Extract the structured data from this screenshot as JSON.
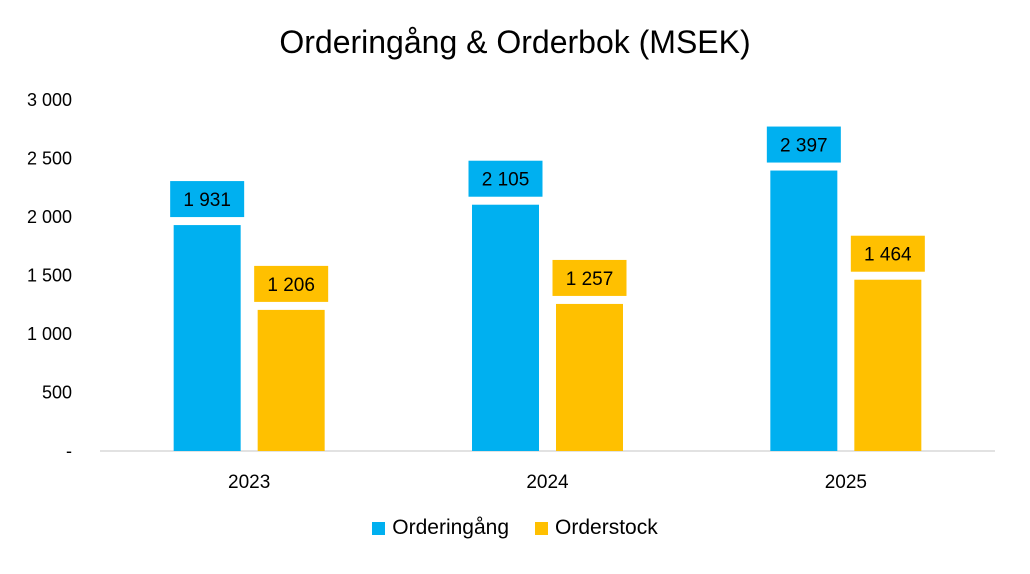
{
  "chart_data": {
    "type": "bar",
    "title": "Orderingång & Orderbok (MSEK)",
    "xlabel": "",
    "ylabel": "",
    "categories": [
      "2023",
      "2024",
      "2025"
    ],
    "series": [
      {
        "name": "Orderingång",
        "values": [
          1931,
          2105,
          2397
        ],
        "labels": [
          "1 931",
          "2 105",
          "2 397"
        ],
        "color": "#00B0F0"
      },
      {
        "name": "Orderstock",
        "values": [
          1206,
          1257,
          1464
        ],
        "labels": [
          "1 206",
          "1 257",
          "1 464"
        ],
        "color": "#FFC000"
      }
    ],
    "ylim": [
      0,
      3000
    ],
    "yticks": [
      {
        "value": 0,
        "label": "-"
      },
      {
        "value": 500,
        "label": "500"
      },
      {
        "value": 1000,
        "label": "1 000"
      },
      {
        "value": 1500,
        "label": "1 500"
      },
      {
        "value": 2000,
        "label": "2 000"
      },
      {
        "value": 2500,
        "label": "2 500"
      },
      {
        "value": 3000,
        "label": "3 000"
      }
    ],
    "grid": false,
    "legend_position": "bottom"
  }
}
